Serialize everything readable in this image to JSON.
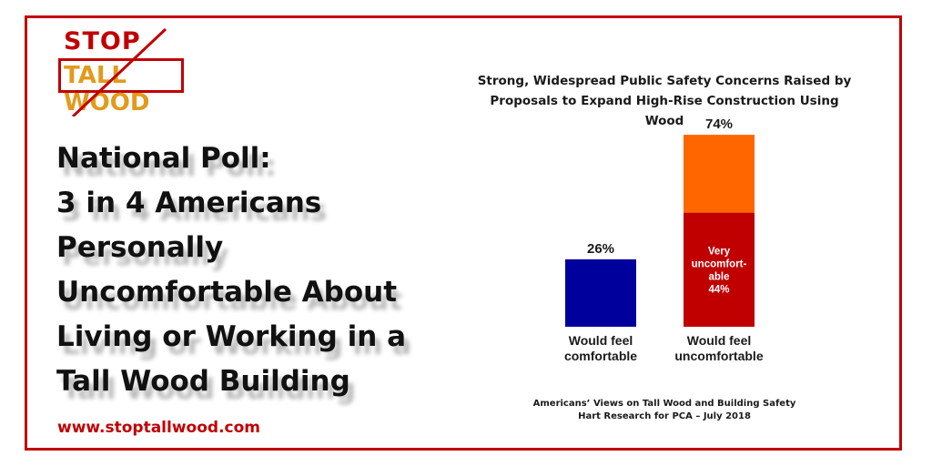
{
  "logo": {
    "line1": "STOP",
    "line2": "TALL WOOD"
  },
  "headline": [
    "National Poll:",
    "3 in 4 Americans",
    "Personally",
    "Uncomfortable About",
    "Living or Working in a",
    "Tall Wood Building"
  ],
  "website": "www.stoptallwood.com",
  "colors": {
    "frame": "#c00000",
    "comfortable": "#00009c",
    "uncomfortable_top": "#ff6600",
    "very_uncomfortable": "#c00000"
  },
  "chart_data": {
    "type": "bar",
    "stacked": true,
    "title_lines": [
      "Strong, Widespread Public Safety Concerns Raised by",
      "Proposals to Expand High-Rise Construction Using Wood"
    ],
    "categories": [
      [
        "Would feel",
        "comfortable"
      ],
      [
        "Would feel",
        "uncomfortable"
      ]
    ],
    "totals": [
      "26%",
      "74%"
    ],
    "series": [
      {
        "values": [
          26,
          30
        ]
      },
      {
        "name": [
          "Very",
          "uncomfort-",
          "able",
          "44%"
        ],
        "values": [
          0,
          44
        ]
      }
    ],
    "ylim": [
      0,
      74
    ],
    "source_lines": [
      "Americans’ Views on Tall Wood and Building Safety",
      "Hart Research for PCA – July 2018"
    ]
  }
}
